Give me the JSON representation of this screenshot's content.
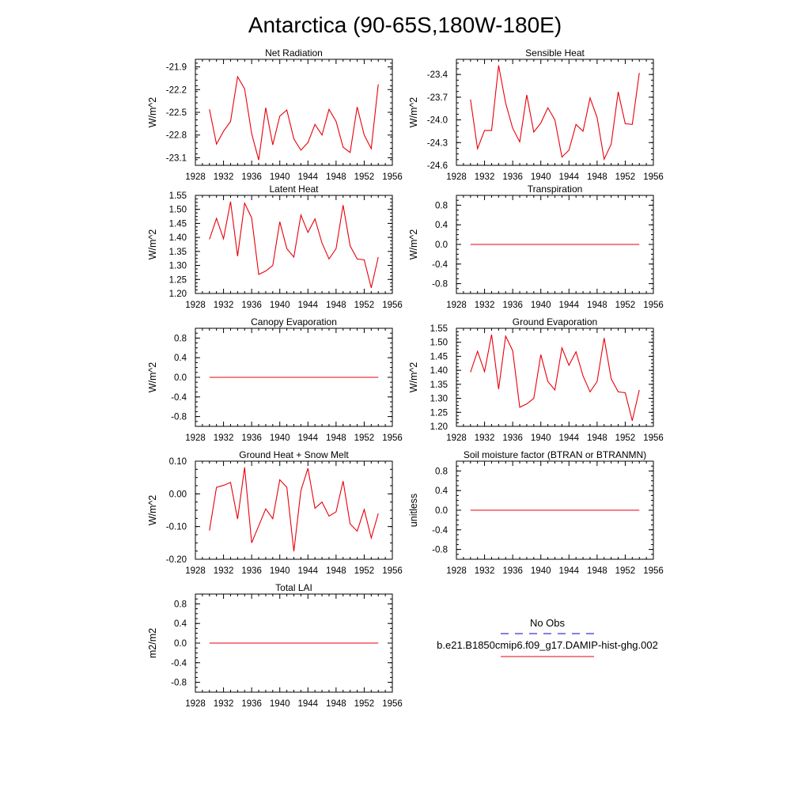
{
  "title": "Antarctica (90-65S,180W-180E)",
  "colors": {
    "series": "#e8000b",
    "obs": "#0000cc",
    "axis": "#000000"
  },
  "chart_data": [
    {
      "type": "line",
      "title": "Net Radiation",
      "ylabel": "W/m^2",
      "xlim": [
        1928,
        1956
      ],
      "xticks": [
        1928,
        1932,
        1936,
        1940,
        1944,
        1948,
        1952,
        1956
      ],
      "ylim": [
        -23.2,
        -21.8
      ],
      "yticks": [
        -21.9,
        -22.2,
        -22.5,
        -22.8,
        -23.1
      ],
      "ytick_labels": [
        "-21.9",
        "-22.2",
        "-22.5",
        "-22.8",
        "-23.1"
      ],
      "x": [
        1930,
        1931,
        1932,
        1933,
        1934,
        1935,
        1936,
        1937,
        1938,
        1939,
        1940,
        1941,
        1942,
        1943,
        1944,
        1945,
        1946,
        1947,
        1948,
        1949,
        1950,
        1951,
        1952,
        1953,
        1954
      ],
      "series": [
        {
          "values": [
            -22.46,
            -22.92,
            -22.75,
            -22.62,
            -22.03,
            -22.19,
            -22.78,
            -23.13,
            -22.44,
            -22.93,
            -22.55,
            -22.47,
            -22.85,
            -23.0,
            -22.9,
            -22.66,
            -22.8,
            -22.46,
            -22.62,
            -22.96,
            -23.03,
            -22.43,
            -22.8,
            -22.98,
            -22.13
          ]
        }
      ]
    },
    {
      "type": "line",
      "title": "Sensible Heat",
      "ylabel": "W/m^2",
      "xlim": [
        1928,
        1956
      ],
      "xticks": [
        1928,
        1932,
        1936,
        1940,
        1944,
        1948,
        1952,
        1956
      ],
      "ylim": [
        -24.6,
        -23.2
      ],
      "yticks": [
        -23.4,
        -23.7,
        -24.0,
        -24.3,
        -24.6
      ],
      "ytick_labels": [
        "-23.4",
        "-23.7",
        "-24.0",
        "-24.3",
        "-24.6"
      ],
      "x": [
        1930,
        1931,
        1932,
        1933,
        1934,
        1935,
        1936,
        1937,
        1938,
        1939,
        1940,
        1941,
        1942,
        1943,
        1944,
        1945,
        1946,
        1947,
        1948,
        1949,
        1950,
        1951,
        1952,
        1953,
        1954
      ],
      "series": [
        {
          "values": [
            -23.73,
            -24.38,
            -24.14,
            -24.14,
            -23.28,
            -23.78,
            -24.11,
            -24.29,
            -23.67,
            -24.16,
            -24.04,
            -23.84,
            -24.0,
            -24.49,
            -24.4,
            -24.06,
            -24.15,
            -23.71,
            -23.97,
            -24.52,
            -24.32,
            -23.63,
            -24.05,
            -24.06,
            -23.38
          ]
        }
      ]
    },
    {
      "type": "line",
      "title": "Latent Heat",
      "ylabel": "W/m^2",
      "xlim": [
        1928,
        1956
      ],
      "xticks": [
        1928,
        1932,
        1936,
        1940,
        1944,
        1948,
        1952,
        1956
      ],
      "ylim": [
        1.2,
        1.55
      ],
      "yticks": [
        1.55,
        1.5,
        1.45,
        1.4,
        1.35,
        1.3,
        1.25,
        1.2
      ],
      "ytick_labels": [
        "1.55",
        "1.50",
        "1.45",
        "1.40",
        "1.35",
        "1.30",
        "1.25",
        "1.20"
      ],
      "x": [
        1930,
        1931,
        1932,
        1933,
        1934,
        1935,
        1936,
        1937,
        1938,
        1939,
        1940,
        1941,
        1942,
        1943,
        1944,
        1945,
        1946,
        1947,
        1948,
        1949,
        1950,
        1951,
        1952,
        1953,
        1954
      ],
      "series": [
        {
          "values": [
            1.393,
            1.468,
            1.395,
            1.528,
            1.333,
            1.522,
            1.47,
            1.268,
            1.28,
            1.3,
            1.456,
            1.36,
            1.33,
            1.48,
            1.418,
            1.466,
            1.38,
            1.323,
            1.36,
            1.515,
            1.37,
            1.323,
            1.32,
            1.22,
            1.33
          ]
        }
      ]
    },
    {
      "type": "line",
      "title": "Transpiration",
      "ylabel": "W/m^2",
      "xlim": [
        1928,
        1956
      ],
      "xticks": [
        1928,
        1932,
        1936,
        1940,
        1944,
        1948,
        1952,
        1956
      ],
      "ylim": [
        -1.0,
        1.0
      ],
      "yticks": [
        0.8,
        0.4,
        0.0,
        -0.4,
        -0.8
      ],
      "ytick_labels": [
        "0.8",
        "0.4",
        "0.0",
        "-0.4",
        "-0.8"
      ],
      "x": [
        1930,
        1954
      ],
      "series": [
        {
          "values": [
            0.0,
            0.0
          ]
        }
      ]
    },
    {
      "type": "line",
      "title": "Canopy Evaporation",
      "ylabel": "W/m^2",
      "xlim": [
        1928,
        1956
      ],
      "xticks": [
        1928,
        1932,
        1936,
        1940,
        1944,
        1948,
        1952,
        1956
      ],
      "ylim": [
        -1.0,
        1.0
      ],
      "yticks": [
        0.8,
        0.4,
        0.0,
        -0.4,
        -0.8
      ],
      "ytick_labels": [
        "0.8",
        "0.4",
        "0.0",
        "-0.4",
        "-0.8"
      ],
      "x": [
        1930,
        1954
      ],
      "series": [
        {
          "values": [
            0.0,
            0.0
          ]
        }
      ]
    },
    {
      "type": "line",
      "title": "Ground Evaporation",
      "ylabel": "W/m^2",
      "xlim": [
        1928,
        1956
      ],
      "xticks": [
        1928,
        1932,
        1936,
        1940,
        1944,
        1948,
        1952,
        1956
      ],
      "ylim": [
        1.2,
        1.55
      ],
      "yticks": [
        1.55,
        1.5,
        1.45,
        1.4,
        1.35,
        1.3,
        1.25,
        1.2
      ],
      "ytick_labels": [
        "1.55",
        "1.50",
        "1.45",
        "1.40",
        "1.35",
        "1.30",
        "1.25",
        "1.20"
      ],
      "x": [
        1930,
        1931,
        1932,
        1933,
        1934,
        1935,
        1936,
        1937,
        1938,
        1939,
        1940,
        1941,
        1942,
        1943,
        1944,
        1945,
        1946,
        1947,
        1948,
        1949,
        1950,
        1951,
        1952,
        1953,
        1954
      ],
      "series": [
        {
          "values": [
            1.393,
            1.468,
            1.395,
            1.528,
            1.333,
            1.522,
            1.47,
            1.268,
            1.28,
            1.3,
            1.456,
            1.36,
            1.33,
            1.48,
            1.418,
            1.466,
            1.38,
            1.323,
            1.36,
            1.515,
            1.37,
            1.323,
            1.32,
            1.22,
            1.33
          ]
        }
      ]
    },
    {
      "type": "line",
      "title": "Ground Heat + Snow Melt",
      "ylabel": "W/m^2",
      "xlim": [
        1928,
        1956
      ],
      "xticks": [
        1928,
        1932,
        1936,
        1940,
        1944,
        1948,
        1952,
        1956
      ],
      "ylim": [
        -0.2,
        0.1
      ],
      "yticks": [
        0.1,
        0.0,
        -0.1,
        -0.2
      ],
      "ytick_labels": [
        "0.10",
        "0.00",
        "-0.10",
        "-0.20"
      ],
      "x": [
        1930,
        1931,
        1932,
        1933,
        1934,
        1935,
        1936,
        1937,
        1938,
        1939,
        1940,
        1941,
        1942,
        1943,
        1944,
        1945,
        1946,
        1947,
        1948,
        1949,
        1950,
        1951,
        1952,
        1953,
        1954
      ],
      "series": [
        {
          "values": [
            -0.112,
            0.02,
            0.026,
            0.035,
            -0.077,
            0.081,
            -0.15,
            -0.098,
            -0.046,
            -0.076,
            0.043,
            0.02,
            -0.176,
            0.01,
            0.078,
            -0.044,
            -0.025,
            -0.068,
            -0.055,
            0.039,
            -0.092,
            -0.114,
            -0.048,
            -0.135,
            -0.06
          ]
        }
      ]
    },
    {
      "type": "line",
      "title": "Soil moisture factor (BTRAN or BTRANMN)",
      "ylabel": "unitless",
      "xlim": [
        1928,
        1956
      ],
      "xticks": [
        1928,
        1932,
        1936,
        1940,
        1944,
        1948,
        1952,
        1956
      ],
      "ylim": [
        -1.0,
        1.0
      ],
      "yticks": [
        0.8,
        0.4,
        0.0,
        -0.4,
        -0.8
      ],
      "ytick_labels": [
        "0.8",
        "0.4",
        "0.0",
        "-0.4",
        "-0.8"
      ],
      "x": [
        1930,
        1954
      ],
      "series": [
        {
          "values": [
            0.0,
            0.0
          ]
        }
      ]
    },
    {
      "type": "line",
      "title": "Total LAI",
      "ylabel": "m2/m2",
      "xlim": [
        1928,
        1956
      ],
      "xticks": [
        1928,
        1932,
        1936,
        1940,
        1944,
        1948,
        1952,
        1956
      ],
      "ylim": [
        -1.0,
        1.0
      ],
      "yticks": [
        0.8,
        0.4,
        0.0,
        -0.4,
        -0.8
      ],
      "ytick_labels": [
        "0.8",
        "0.4",
        "0.0",
        "-0.4",
        "-0.8"
      ],
      "x": [
        1930,
        1954
      ],
      "series": [
        {
          "values": [
            0.0,
            0.0
          ]
        }
      ]
    }
  ],
  "legend": {
    "placement": "bottom-right",
    "entries": [
      {
        "label": "No Obs",
        "style": "dashed",
        "color": "#0000cc"
      },
      {
        "label": "b.e21.B1850cmip6.f09_g17.DAMIP-hist-ghg.002",
        "style": "solid",
        "color": "#e8000b"
      }
    ]
  }
}
